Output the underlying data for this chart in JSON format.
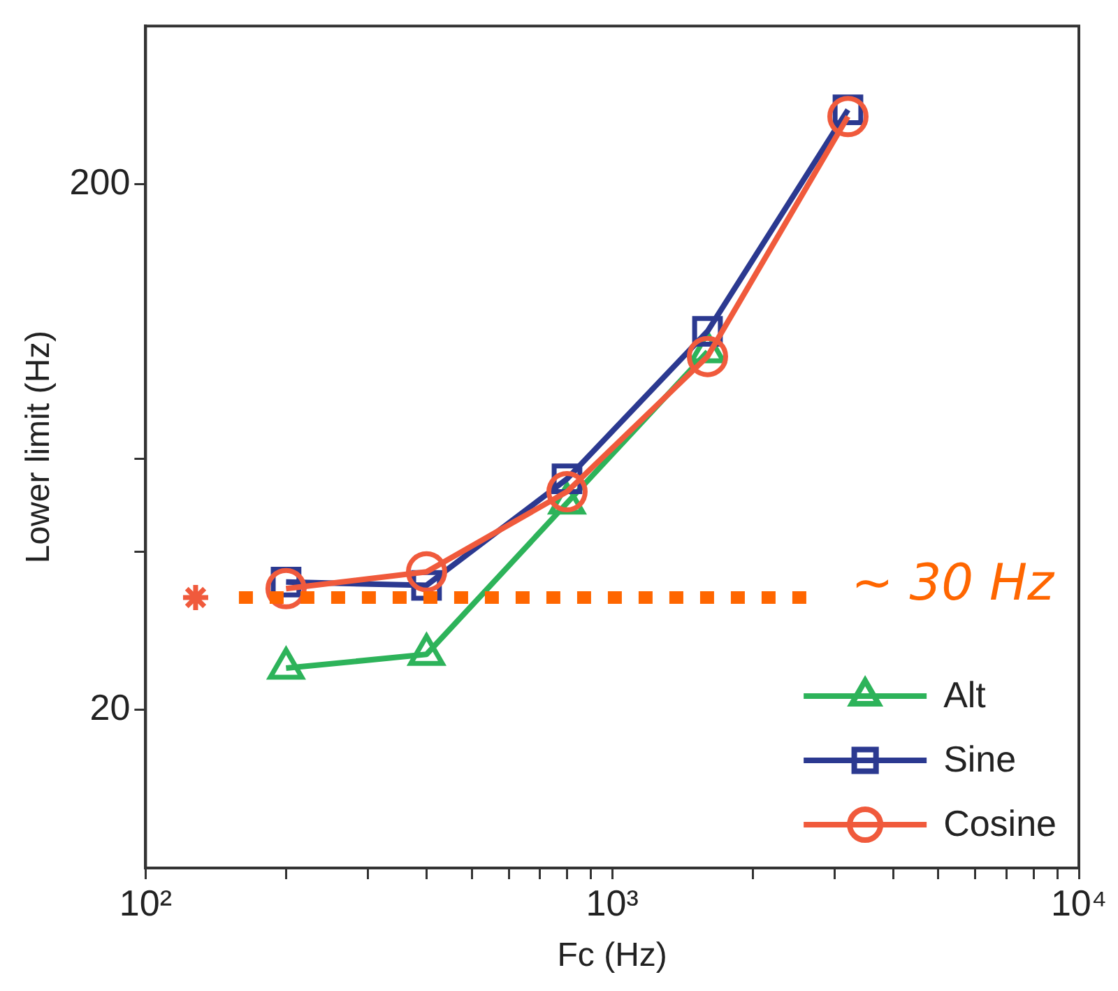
{
  "chart_data": {
    "type": "line",
    "xlabel": "Fc (Hz)",
    "ylabel": "Lower limit (Hz)",
    "log": "xy",
    "x": [
      200,
      400,
      800,
      1600,
      3200
    ],
    "xlim": [
      100,
      10000
    ],
    "xticks": [
      {
        "value": 100,
        "label": "10²"
      },
      {
        "value": 200,
        "label": null
      },
      {
        "value": 300,
        "label": null
      },
      {
        "value": 400,
        "label": null
      },
      {
        "value": 500,
        "label": null
      },
      {
        "value": 600,
        "label": null
      },
      {
        "value": 700,
        "label": null
      },
      {
        "value": 800,
        "label": null
      },
      {
        "value": 900,
        "label": null
      },
      {
        "value": 1000,
        "label": "10³"
      },
      {
        "value": 2000,
        "label": null
      },
      {
        "value": 3000,
        "label": null
      },
      {
        "value": 4000,
        "label": null
      },
      {
        "value": 5000,
        "label": null
      },
      {
        "value": 6000,
        "label": null
      },
      {
        "value": 7000,
        "label": null
      },
      {
        "value": 8000,
        "label": null
      },
      {
        "value": 9000,
        "label": null
      },
      {
        "value": 10000,
        "label": "10⁴"
      }
    ],
    "ylim": [
      10,
      400
    ],
    "yticks": [
      20,
      {
        "value": 40,
        "label": null
      },
      {
        "value": 60,
        "label": null
      },
      200
    ],
    "series": [
      {
        "name": "Alt",
        "color": "#2db35a",
        "marker": "triangle",
        "values": [
          24,
          25.5,
          49.5,
          96,
          null
        ]
      },
      {
        "name": "Sine",
        "color": "#2b3990",
        "marker": "square",
        "values": [
          35,
          34.5,
          55,
          105,
          277
        ]
      },
      {
        "name": "Cosine",
        "color": "#f05a3c",
        "marker": "circle",
        "values": [
          34,
          36.6,
          52,
          94,
          269
        ]
      },
      {
        "color": "#f05a3c",
        "marker": "cross",
        "x": [
          128
        ],
        "values": [
          32.7
        ]
      }
    ],
    "ref_lines": [
      {
        "axis": "y",
        "value": 32.7,
        "label": "~ 30 Hz",
        "color": "#ff6600",
        "line_style": "dotted"
      }
    ],
    "legend": "bottom right",
    "grid": false
  }
}
